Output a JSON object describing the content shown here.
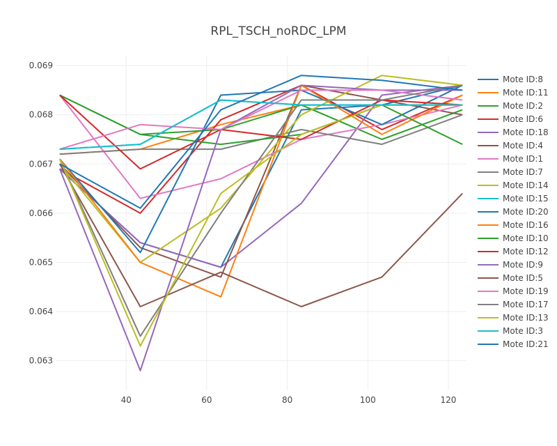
{
  "chart_data": {
    "type": "line",
    "title": "RPL_TSCH_noRDC_LPM",
    "xlabel": "",
    "ylabel": "",
    "x": [
      23.5,
      43.5,
      63.5,
      83.5,
      103.5,
      123.5
    ],
    "xlim": [
      22.5,
      124.5
    ],
    "ylim": [
      0.0624,
      0.0692
    ],
    "x_ticks": [
      "40",
      "60",
      "80",
      "100",
      "120"
    ],
    "y_ticks": [
      "0.063",
      "0.064",
      "0.065",
      "0.066",
      "0.067",
      "0.068",
      "0.069"
    ],
    "grid": true,
    "legend_position": "right",
    "series": [
      {
        "name": "Mote ID:8",
        "color": "#1f77b4",
        "values": [
          0.0669,
          0.0654,
          0.0649,
          0.0681,
          0.0682,
          0.0686
        ]
      },
      {
        "name": "Mote ID:11",
        "color": "#ff7f0e",
        "values": [
          0.0672,
          0.0673,
          0.0678,
          0.0682,
          0.0682,
          0.0682
        ]
      },
      {
        "name": "Mote ID:2",
        "color": "#2ca02c",
        "values": [
          0.0684,
          0.0676,
          0.0677,
          0.0682,
          0.0675,
          0.0681
        ]
      },
      {
        "name": "Mote ID:6",
        "color": "#d62728",
        "values": [
          0.0669,
          0.066,
          0.0679,
          0.0686,
          0.0677,
          0.0684
        ]
      },
      {
        "name": "Mote ID:18",
        "color": "#9467bd",
        "values": [
          0.0669,
          0.0654,
          0.0649,
          0.0662,
          0.0684,
          0.0686
        ]
      },
      {
        "name": "Mote ID:4",
        "color": "#8c564b",
        "values": [
          0.067,
          0.0653,
          0.0647,
          0.0686,
          0.0683,
          0.068
        ]
      },
      {
        "name": "Mote ID:1",
        "color": "#e377c2",
        "values": [
          0.0684,
          0.0663,
          0.0667,
          0.0675,
          0.0678,
          0.0682
        ]
      },
      {
        "name": "Mote ID:7",
        "color": "#7f7f7f",
        "values": [
          0.0672,
          0.0673,
          0.0673,
          0.0677,
          0.0674,
          0.068
        ]
      },
      {
        "name": "Mote ID:14",
        "color": "#bcbd22",
        "values": [
          0.067,
          0.065,
          0.0661,
          0.068,
          0.0688,
          0.0686
        ]
      },
      {
        "name": "Mote ID:15",
        "color": "#17becf",
        "values": [
          0.0673,
          0.0674,
          0.0683,
          0.0682,
          0.0682,
          0.0682
        ]
      },
      {
        "name": "Mote ID:20",
        "color": "#1f77b4",
        "values": [
          0.0671,
          0.0652,
          0.0684,
          0.0685,
          0.0678,
          0.0686
        ]
      },
      {
        "name": "Mote ID:16",
        "color": "#ff7f0e",
        "values": [
          0.0671,
          0.065,
          0.0643,
          0.0686,
          0.0676,
          0.0684
        ]
      },
      {
        "name": "Mote ID:10",
        "color": "#2ca02c",
        "values": [
          0.0684,
          0.0676,
          0.0674,
          0.0676,
          0.0682,
          0.0674
        ]
      },
      {
        "name": "Mote ID:12",
        "color": "#d62728",
        "values": [
          0.0684,
          0.0669,
          0.0677,
          0.0675,
          0.0683,
          0.0682
        ]
      },
      {
        "name": "Mote ID:9",
        "color": "#9467bd",
        "values": [
          0.0669,
          0.0628,
          0.0677,
          0.0686,
          0.0685,
          0.0685
        ]
      },
      {
        "name": "Mote ID:5",
        "color": "#8c564b",
        "values": [
          0.067,
          0.0641,
          0.0648,
          0.0641,
          0.0647,
          0.0664
        ]
      },
      {
        "name": "Mote ID:19",
        "color": "#e377c2",
        "values": [
          0.0673,
          0.0678,
          0.0677,
          0.0685,
          0.0685,
          0.0683
        ]
      },
      {
        "name": "Mote ID:17",
        "color": "#7f7f7f",
        "values": [
          0.0671,
          0.0635,
          0.066,
          0.0683,
          0.0683,
          0.0686
        ]
      },
      {
        "name": "Mote ID:13",
        "color": "#bcbd22",
        "values": [
          0.0671,
          0.0633,
          0.0664,
          0.0676,
          0.0682,
          0.0682
        ]
      },
      {
        "name": "Mote ID:3",
        "color": "#17becf",
        "values": [
          0.0673,
          0.0674,
          0.0683,
          0.0682,
          0.0682,
          0.0682
        ]
      },
      {
        "name": "Mote ID:21",
        "color": "#1f77b4",
        "values": [
          0.067,
          0.0661,
          0.0681,
          0.0688,
          0.0687,
          0.0685
        ]
      }
    ]
  }
}
